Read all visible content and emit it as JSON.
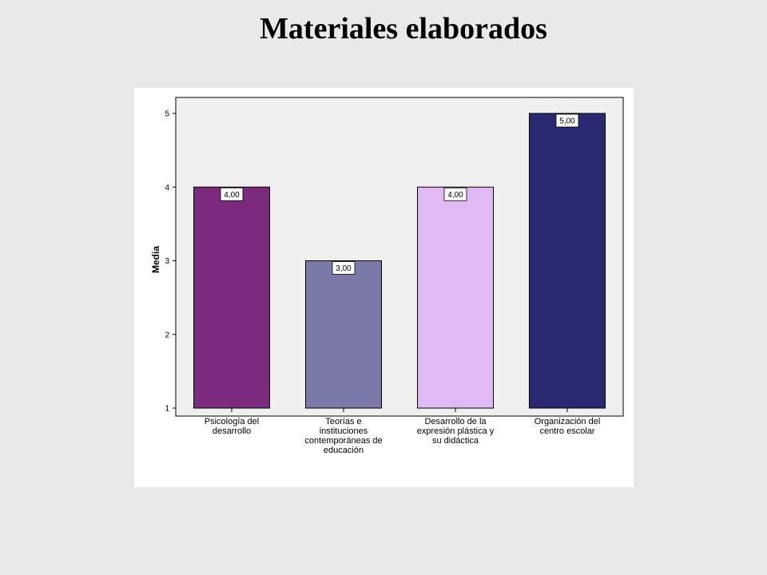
{
  "slide": {
    "title": "Materiales elaborados"
  },
  "chart_data": {
    "type": "bar",
    "title": "Materiales elaborados",
    "xlabel": "",
    "ylabel": "Media",
    "ylim": [
      1,
      5
    ],
    "yticks": [
      "1",
      "2",
      "3",
      "4",
      "5"
    ],
    "categories": [
      [
        "Psicología del",
        "desarrollo"
      ],
      [
        "Teorías e",
        "instituciones",
        "contemporáneas de",
        "educación"
      ],
      [
        "Desarrollo de la",
        "expresión plástica y",
        "su didáctica"
      ],
      [
        "Organización del",
        "centro escolar"
      ]
    ],
    "values": [
      4,
      3,
      4,
      5
    ],
    "data_labels": [
      "4,00",
      "3,00",
      "4,00",
      "5,00"
    ],
    "colors": [
      "#7b2a7d",
      "#7b79a8",
      "#e0b8f2",
      "#2a2a72"
    ],
    "plot_background": "#f0f0f0",
    "grid": false,
    "legend": "none"
  }
}
